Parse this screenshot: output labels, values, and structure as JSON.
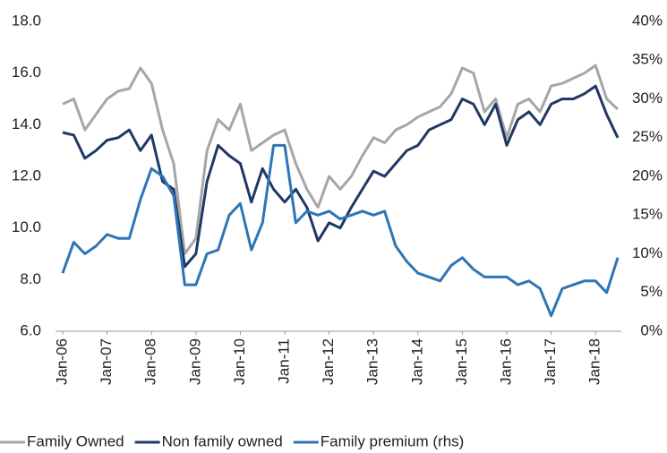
{
  "chart_data": {
    "type": "line",
    "categories": [
      "Jan-06",
      null,
      null,
      null,
      "Jan-07",
      null,
      null,
      null,
      "Jan-08",
      null,
      null,
      null,
      "Jan-09",
      null,
      null,
      null,
      "Jan-10",
      null,
      null,
      null,
      "Jan-11",
      null,
      null,
      null,
      "Jan-12",
      null,
      null,
      null,
      "Jan-13",
      null,
      null,
      null,
      "Jan-14",
      null,
      null,
      null,
      "Jan-15",
      null,
      null,
      null,
      "Jan-16",
      null,
      null,
      null,
      "Jan-17",
      null,
      null,
      null,
      "Jan-18",
      null,
      null
    ],
    "series": [
      {
        "name": "Family Owned",
        "color": "#a6a6a6",
        "axis": "y",
        "values": [
          14.8,
          15.0,
          13.8,
          14.4,
          15.0,
          15.3,
          15.4,
          16.2,
          15.6,
          13.8,
          12.5,
          9.0,
          9.6,
          13.0,
          14.2,
          13.8,
          14.8,
          13.0,
          13.3,
          13.6,
          13.8,
          12.5,
          11.5,
          10.8,
          12.0,
          11.5,
          12.0,
          12.8,
          13.5,
          13.3,
          13.8,
          14.0,
          14.3,
          14.5,
          14.7,
          15.2,
          16.2,
          16.0,
          14.5,
          15.0,
          13.5,
          14.8,
          15.0,
          14.5,
          15.5,
          15.6,
          15.8,
          16.0,
          16.3,
          15.0,
          14.6
        ]
      },
      {
        "name": "Non family owned",
        "color": "#1f3864",
        "axis": "y",
        "values": [
          13.7,
          13.6,
          12.7,
          13.0,
          13.4,
          13.5,
          13.8,
          13.0,
          13.6,
          11.8,
          11.5,
          8.5,
          9.0,
          11.8,
          13.2,
          12.8,
          12.5,
          11.0,
          12.3,
          11.5,
          11.0,
          11.5,
          10.8,
          9.5,
          10.2,
          10.0,
          10.8,
          11.5,
          12.2,
          12.0,
          12.5,
          13.0,
          13.2,
          13.8,
          14.0,
          14.2,
          15.0,
          14.8,
          14.0,
          14.8,
          13.2,
          14.2,
          14.5,
          14.0,
          14.8,
          15.0,
          15.0,
          15.2,
          15.5,
          14.4,
          13.5
        ]
      },
      {
        "name": "Family premium (rhs)",
        "color": "#2e75b6",
        "axis": "y2",
        "values": [
          7.5,
          11.5,
          10.0,
          11.0,
          12.5,
          12.0,
          12.0,
          17.0,
          21.0,
          20.0,
          17.5,
          6.0,
          6.0,
          10.0,
          10.5,
          15.0,
          16.5,
          10.5,
          14.0,
          24.0,
          24.0,
          14.0,
          15.5,
          15.0,
          15.5,
          14.5,
          15.0,
          15.5,
          15.0,
          15.5,
          11.0,
          9.0,
          7.5,
          7.0,
          6.5,
          8.5,
          9.5,
          8.0,
          7.0,
          7.0,
          7.0,
          6.0,
          6.5,
          5.5,
          2.0,
          5.5,
          6.0,
          6.5,
          6.5,
          5.0,
          9.5
        ]
      }
    ],
    "ylim": [
      6,
      18
    ],
    "yticks": [
      {
        "value": 6,
        "label": "6.0"
      },
      {
        "value": 8,
        "label": "8.0"
      },
      {
        "value": 10,
        "label": "10.0"
      },
      {
        "value": 12,
        "label": "12.0"
      },
      {
        "value": 14,
        "label": "14.0"
      },
      {
        "value": 16,
        "label": "16.0"
      },
      {
        "value": 18,
        "label": "18.0"
      }
    ],
    "y2lim": [
      0,
      40
    ],
    "y2ticks": [
      {
        "value": 0,
        "label": "0%"
      },
      {
        "value": 5,
        "label": "5%"
      },
      {
        "value": 10,
        "label": "10%"
      },
      {
        "value": 15,
        "label": "15%"
      },
      {
        "value": 20,
        "label": "20%"
      },
      {
        "value": 25,
        "label": "25%"
      },
      {
        "value": 30,
        "label": "30%"
      },
      {
        "value": 35,
        "label": "35%"
      },
      {
        "value": 40,
        "label": "40%"
      }
    ],
    "legend": "bottom"
  }
}
